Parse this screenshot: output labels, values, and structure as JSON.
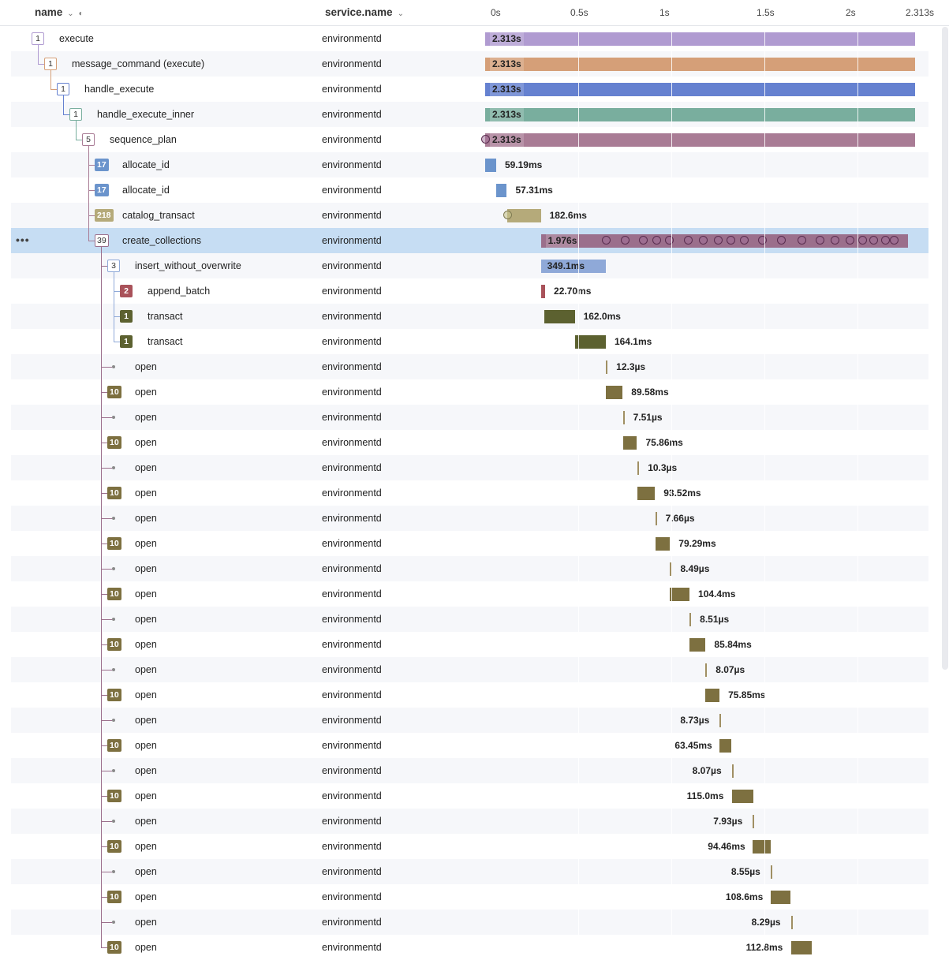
{
  "header": {
    "name_label": "name",
    "service_label": "service.name",
    "name_sort_icon": "chevron-down-icon",
    "name_extra_icon": "eye-off-icon",
    "service_sort_icon": "chevron-down-icon",
    "timeline_ticks": [
      "0s",
      "0.5s",
      "1s",
      "1.5s",
      "2s",
      "2.313s"
    ]
  },
  "timeline": {
    "total_s": 2.313
  },
  "colors": {
    "execute": "#b09bd1",
    "message_command": "#d59f78",
    "handle_execute": "#6581d0",
    "handle_execute_inner": "#79ae9e",
    "sequence_plan": "#a97c95",
    "allocate_id": "#8fa9d8",
    "catalog_transact": "#c0b48a",
    "create_collections": "#9b6f8c",
    "insert_without_overwrite": "#8fa9d8",
    "append_batch": "#b8686d",
    "transact": "#7a8252",
    "open": "#a08f63",
    "selected_row": "#c6ddf3"
  },
  "spans": [
    {
      "name": "execute",
      "service": "environmentd",
      "count": "1",
      "depth": 0,
      "style": "outline",
      "color": "#b09bd1",
      "start_s": 0,
      "dur_s": 2.313,
      "duration": "2.313s"
    },
    {
      "name": "message_command (execute)",
      "service": "environmentd",
      "count": "1",
      "depth": 1,
      "style": "outline",
      "color": "#d59f78",
      "start_s": 0,
      "dur_s": 2.313,
      "duration": "2.313s"
    },
    {
      "name": "handle_execute",
      "service": "environmentd",
      "count": "1",
      "depth": 2,
      "style": "outline",
      "color": "#6581d0",
      "start_s": 0,
      "dur_s": 2.313,
      "duration": "2.313s"
    },
    {
      "name": "handle_execute_inner",
      "service": "environmentd",
      "count": "1",
      "depth": 3,
      "style": "outline",
      "color": "#79ae9e",
      "start_s": 0,
      "dur_s": 2.313,
      "duration": "2.313s"
    },
    {
      "name": "sequence_plan",
      "service": "environmentd",
      "count": "5",
      "depth": 4,
      "style": "outline",
      "color": "#a97c95",
      "start_s": 0,
      "dur_s": 2.313,
      "duration": "2.313s",
      "events_s": [
        0.0
      ]
    },
    {
      "name": "allocate_id",
      "service": "environmentd",
      "count": "17",
      "depth": 5,
      "style": "filled",
      "color": "#6b94cc",
      "start_s": 0.0,
      "dur_s": 0.0592,
      "duration": "59.19ms"
    },
    {
      "name": "allocate_id",
      "service": "environmentd",
      "count": "17",
      "depth": 5,
      "style": "filled",
      "color": "#6b94cc",
      "start_s": 0.0592,
      "dur_s": 0.0573,
      "duration": "57.31ms"
    },
    {
      "name": "catalog_transact",
      "service": "environmentd",
      "count": "218",
      "depth": 5,
      "style": "filled",
      "color": "#b5aa7a",
      "start_s": 0.117,
      "dur_s": 0.1826,
      "duration": "182.6ms",
      "events_s": [
        0.12
      ]
    },
    {
      "name": "create_collections",
      "service": "environmentd",
      "count": "39",
      "depth": 5,
      "style": "outline",
      "color": "#9b6f8c",
      "start_s": 0.3,
      "dur_s": 1.976,
      "duration": "1.976s",
      "selected": true,
      "events_s": [
        0.65,
        0.75,
        0.85,
        0.92,
        0.99,
        1.09,
        1.17,
        1.25,
        1.32,
        1.39,
        1.49,
        1.59,
        1.7,
        1.8,
        1.88,
        1.96,
        2.03,
        2.09,
        2.15,
        2.2
      ]
    },
    {
      "name": "insert_without_overwrite",
      "service": "environmentd",
      "count": "3",
      "depth": 6,
      "style": "outline",
      "color": "#8fa9d8",
      "start_s": 0.3,
      "dur_s": 0.3491,
      "duration": "349.1ms"
    },
    {
      "name": "append_batch",
      "service": "environmentd",
      "count": "2",
      "depth": 7,
      "style": "filled",
      "color": "#a9525a",
      "start_s": 0.3,
      "dur_s": 0.0227,
      "duration": "22.70ms"
    },
    {
      "name": "transact",
      "service": "environmentd",
      "count": "1",
      "depth": 7,
      "style": "filled",
      "color": "#5c6130",
      "start_s": 0.32,
      "dur_s": 0.162,
      "duration": "162.0ms"
    },
    {
      "name": "transact",
      "service": "environmentd",
      "count": "1",
      "depth": 7,
      "style": "filled",
      "color": "#5c6130",
      "start_s": 0.485,
      "dur_s": 0.1641,
      "duration": "164.1ms"
    },
    {
      "name": "open",
      "service": "environmentd",
      "count": "",
      "depth": 6,
      "style": "leaf",
      "color": "#a08f63",
      "start_s": 0.65,
      "dur_s": 1.23e-05,
      "duration": "12.3µs"
    },
    {
      "name": "open",
      "service": "environmentd",
      "count": "10",
      "depth": 6,
      "style": "filled",
      "color": "#7d7040",
      "start_s": 0.65,
      "dur_s": 0.0896,
      "duration": "89.58ms"
    },
    {
      "name": "open",
      "service": "environmentd",
      "count": "",
      "depth": 6,
      "style": "leaf",
      "color": "#a08f63",
      "start_s": 0.741,
      "dur_s": 7.5e-06,
      "duration": "7.51µs"
    },
    {
      "name": "open",
      "service": "environmentd",
      "count": "10",
      "depth": 6,
      "style": "filled",
      "color": "#7d7040",
      "start_s": 0.741,
      "dur_s": 0.0759,
      "duration": "75.86ms"
    },
    {
      "name": "open",
      "service": "environmentd",
      "count": "",
      "depth": 6,
      "style": "leaf",
      "color": "#a08f63",
      "start_s": 0.82,
      "dur_s": 1.03e-05,
      "duration": "10.3µs"
    },
    {
      "name": "open",
      "service": "environmentd",
      "count": "10",
      "depth": 6,
      "style": "filled",
      "color": "#7d7040",
      "start_s": 0.82,
      "dur_s": 0.0935,
      "duration": "93.52ms"
    },
    {
      "name": "open",
      "service": "environmentd",
      "count": "",
      "depth": 6,
      "style": "leaf",
      "color": "#a08f63",
      "start_s": 0.915,
      "dur_s": 7.7e-06,
      "duration": "7.66µs"
    },
    {
      "name": "open",
      "service": "environmentd",
      "count": "10",
      "depth": 6,
      "style": "filled",
      "color": "#7d7040",
      "start_s": 0.915,
      "dur_s": 0.0793,
      "duration": "79.29ms"
    },
    {
      "name": "open",
      "service": "environmentd",
      "count": "",
      "depth": 6,
      "style": "leaf",
      "color": "#a08f63",
      "start_s": 0.995,
      "dur_s": 8.5e-06,
      "duration": "8.49µs"
    },
    {
      "name": "open",
      "service": "environmentd",
      "count": "10",
      "depth": 6,
      "style": "filled",
      "color": "#7d7040",
      "start_s": 0.995,
      "dur_s": 0.1044,
      "duration": "104.4ms"
    },
    {
      "name": "open",
      "service": "environmentd",
      "count": "",
      "depth": 6,
      "style": "leaf",
      "color": "#a08f63",
      "start_s": 1.1,
      "dur_s": 8.5e-06,
      "duration": "8.51µs"
    },
    {
      "name": "open",
      "service": "environmentd",
      "count": "10",
      "depth": 6,
      "style": "filled",
      "color": "#7d7040",
      "start_s": 1.1,
      "dur_s": 0.0858,
      "duration": "85.84ms"
    },
    {
      "name": "open",
      "service": "environmentd",
      "count": "",
      "depth": 6,
      "style": "leaf",
      "color": "#a08f63",
      "start_s": 1.185,
      "dur_s": 8.1e-06,
      "duration": "8.07µs"
    },
    {
      "name": "open",
      "service": "environmentd",
      "count": "10",
      "depth": 6,
      "style": "filled",
      "color": "#7d7040",
      "start_s": 1.185,
      "dur_s": 0.0759,
      "duration": "75.85ms"
    },
    {
      "name": "open",
      "service": "environmentd",
      "count": "",
      "depth": 6,
      "style": "leaf",
      "color": "#a08f63",
      "start_s": 1.262,
      "dur_s": 8.7e-06,
      "duration": "8.73µs",
      "label_left": true
    },
    {
      "name": "open",
      "service": "environmentd",
      "count": "10",
      "depth": 6,
      "style": "filled",
      "color": "#7d7040",
      "start_s": 1.262,
      "dur_s": 0.0635,
      "duration": "63.45ms",
      "label_left": true
    },
    {
      "name": "open",
      "service": "environmentd",
      "count": "",
      "depth": 6,
      "style": "leaf",
      "color": "#a08f63",
      "start_s": 1.327,
      "dur_s": 8.1e-06,
      "duration": "8.07µs",
      "label_left": true
    },
    {
      "name": "open",
      "service": "environmentd",
      "count": "10",
      "depth": 6,
      "style": "filled",
      "color": "#7d7040",
      "start_s": 1.327,
      "dur_s": 0.115,
      "duration": "115.0ms",
      "label_left": true
    },
    {
      "name": "open",
      "service": "environmentd",
      "count": "",
      "depth": 6,
      "style": "leaf",
      "color": "#a08f63",
      "start_s": 1.44,
      "dur_s": 7.9e-06,
      "duration": "7.93µs",
      "label_left": true
    },
    {
      "name": "open",
      "service": "environmentd",
      "count": "10",
      "depth": 6,
      "style": "filled",
      "color": "#7d7040",
      "start_s": 1.44,
      "dur_s": 0.0945,
      "duration": "94.46ms",
      "label_left": true
    },
    {
      "name": "open",
      "service": "environmentd",
      "count": "",
      "depth": 6,
      "style": "leaf",
      "color": "#a08f63",
      "start_s": 1.536,
      "dur_s": 8.6e-06,
      "duration": "8.55µs",
      "label_left": true
    },
    {
      "name": "open",
      "service": "environmentd",
      "count": "10",
      "depth": 6,
      "style": "filled",
      "color": "#7d7040",
      "start_s": 1.536,
      "dur_s": 0.1086,
      "duration": "108.6ms",
      "label_left": true
    },
    {
      "name": "open",
      "service": "environmentd",
      "count": "",
      "depth": 6,
      "style": "leaf",
      "color": "#a08f63",
      "start_s": 1.645,
      "dur_s": 8.3e-06,
      "duration": "8.29µs",
      "label_left": true
    },
    {
      "name": "open",
      "service": "environmentd",
      "count": "10",
      "depth": 6,
      "style": "filled",
      "color": "#7d7040",
      "start_s": 1.645,
      "dur_s": 0.1128,
      "duration": "112.8ms",
      "label_left": true
    }
  ]
}
